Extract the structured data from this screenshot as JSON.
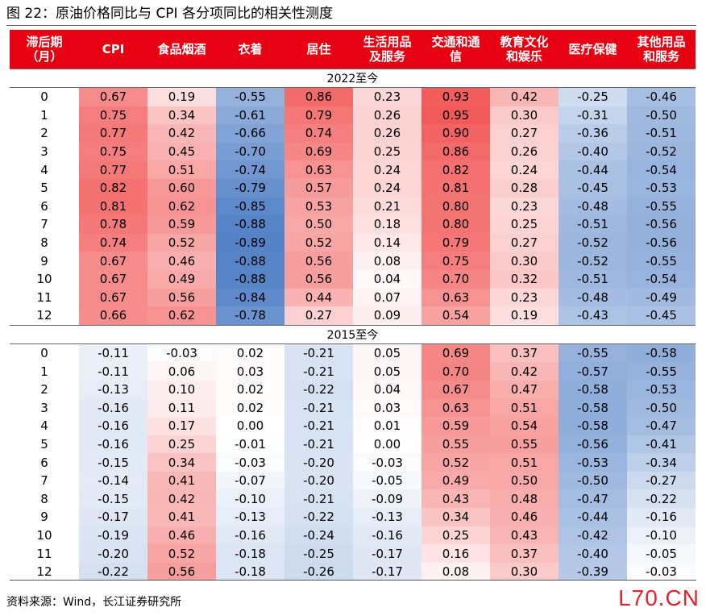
{
  "title": "图 22：原油价格同比与 CPI 各分项同比的相关性测度",
  "source": "资料来源：Wind，长江证券研究所",
  "watermark": "L70.CN",
  "colors": {
    "header_bg": "#e60012",
    "positive": "#f25a5a",
    "negative": "#4a7ac3"
  },
  "chart_data": {
    "type": "heatmap",
    "title": "原油价格同比与 CPI 各分项同比的相关性测度",
    "row_header": [
      "滞后期",
      "（月）"
    ],
    "columns": [
      [
        "CPI"
      ],
      [
        "食品烟酒"
      ],
      [
        "衣着"
      ],
      [
        "居住"
      ],
      [
        "生活用品",
        "及服务"
      ],
      [
        "交通和通",
        "信"
      ],
      [
        "教育文化",
        "和娱乐"
      ],
      [
        "医疗保健"
      ],
      [
        "其他用品",
        "和服务"
      ]
    ],
    "sections": [
      {
        "label": "2022至今",
        "rows": [
          {
            "lag": "0",
            "values": [
              0.67,
              0.19,
              -0.55,
              0.86,
              0.23,
              0.93,
              0.42,
              -0.25,
              -0.46
            ]
          },
          {
            "lag": "1",
            "values": [
              0.75,
              0.34,
              -0.61,
              0.79,
              0.26,
              0.95,
              0.3,
              -0.31,
              -0.5
            ]
          },
          {
            "lag": "2",
            "values": [
              0.77,
              0.42,
              -0.66,
              0.74,
              0.26,
              0.9,
              0.27,
              -0.36,
              -0.51
            ]
          },
          {
            "lag": "3",
            "values": [
              0.75,
              0.45,
              -0.7,
              0.69,
              0.25,
              0.86,
              0.26,
              -0.4,
              -0.52
            ]
          },
          {
            "lag": "4",
            "values": [
              0.77,
              0.51,
              -0.74,
              0.63,
              0.24,
              0.82,
              0.24,
              -0.44,
              -0.54
            ]
          },
          {
            "lag": "5",
            "values": [
              0.82,
              0.6,
              -0.79,
              0.57,
              0.24,
              0.81,
              0.28,
              -0.45,
              -0.53
            ]
          },
          {
            "lag": "6",
            "values": [
              0.81,
              0.62,
              -0.85,
              0.53,
              0.21,
              0.8,
              0.23,
              -0.48,
              -0.55
            ]
          },
          {
            "lag": "7",
            "values": [
              0.78,
              0.59,
              -0.88,
              0.5,
              0.18,
              0.8,
              0.25,
              -0.51,
              -0.56
            ]
          },
          {
            "lag": "8",
            "values": [
              0.74,
              0.52,
              -0.89,
              0.52,
              0.14,
              0.79,
              0.27,
              -0.52,
              -0.56
            ]
          },
          {
            "lag": "9",
            "values": [
              0.67,
              0.46,
              -0.88,
              0.56,
              0.08,
              0.75,
              0.3,
              -0.52,
              -0.55
            ]
          },
          {
            "lag": "10",
            "values": [
              0.67,
              0.49,
              -0.88,
              0.56,
              0.04,
              0.7,
              0.32,
              -0.51,
              -0.54
            ]
          },
          {
            "lag": "11",
            "values": [
              0.67,
              0.56,
              -0.84,
              0.44,
              0.07,
              0.63,
              0.23,
              -0.48,
              -0.49
            ]
          },
          {
            "lag": "12",
            "values": [
              0.66,
              0.62,
              -0.78,
              0.27,
              0.09,
              0.54,
              0.19,
              -0.43,
              -0.45
            ]
          }
        ]
      },
      {
        "label": "2015至今",
        "rows": [
          {
            "lag": "0",
            "values": [
              -0.11,
              -0.03,
              0.02,
              -0.21,
              0.05,
              0.69,
              0.37,
              -0.55,
              -0.58
            ]
          },
          {
            "lag": "1",
            "values": [
              -0.11,
              0.06,
              0.03,
              -0.21,
              0.05,
              0.7,
              0.42,
              -0.57,
              -0.55
            ]
          },
          {
            "lag": "2",
            "values": [
              -0.13,
              0.1,
              0.02,
              -0.22,
              0.04,
              0.67,
              0.47,
              -0.58,
              -0.53
            ]
          },
          {
            "lag": "3",
            "values": [
              -0.16,
              0.11,
              0.02,
              -0.21,
              0.03,
              0.63,
              0.51,
              -0.58,
              -0.5
            ]
          },
          {
            "lag": "4",
            "values": [
              -0.16,
              0.17,
              0.0,
              -0.21,
              0.01,
              0.59,
              0.54,
              -0.58,
              -0.47
            ]
          },
          {
            "lag": "5",
            "values": [
              -0.16,
              0.25,
              -0.01,
              -0.21,
              0.0,
              0.55,
              0.55,
              -0.56,
              -0.41
            ]
          },
          {
            "lag": "6",
            "values": [
              -0.15,
              0.34,
              -0.03,
              -0.2,
              -0.03,
              0.52,
              0.51,
              -0.53,
              -0.34
            ]
          },
          {
            "lag": "7",
            "values": [
              -0.14,
              0.41,
              -0.07,
              -0.2,
              -0.05,
              0.49,
              0.5,
              -0.5,
              -0.27
            ]
          },
          {
            "lag": "8",
            "values": [
              -0.15,
              0.42,
              -0.1,
              -0.21,
              -0.09,
              0.43,
              0.48,
              -0.47,
              -0.22
            ]
          },
          {
            "lag": "9",
            "values": [
              -0.17,
              0.41,
              -0.13,
              -0.22,
              -0.13,
              0.34,
              0.46,
              -0.44,
              -0.16
            ]
          },
          {
            "lag": "10",
            "values": [
              -0.19,
              0.46,
              -0.16,
              -0.24,
              -0.16,
              0.25,
              0.43,
              -0.42,
              -0.1
            ]
          },
          {
            "lag": "11",
            "values": [
              -0.2,
              0.52,
              -0.18,
              -0.25,
              -0.17,
              0.16,
              0.37,
              -0.4,
              -0.05
            ]
          },
          {
            "lag": "12",
            "values": [
              -0.22,
              0.56,
              -0.18,
              -0.26,
              -0.17,
              0.08,
              0.3,
              -0.39,
              -0.03
            ]
          }
        ]
      }
    ]
  }
}
